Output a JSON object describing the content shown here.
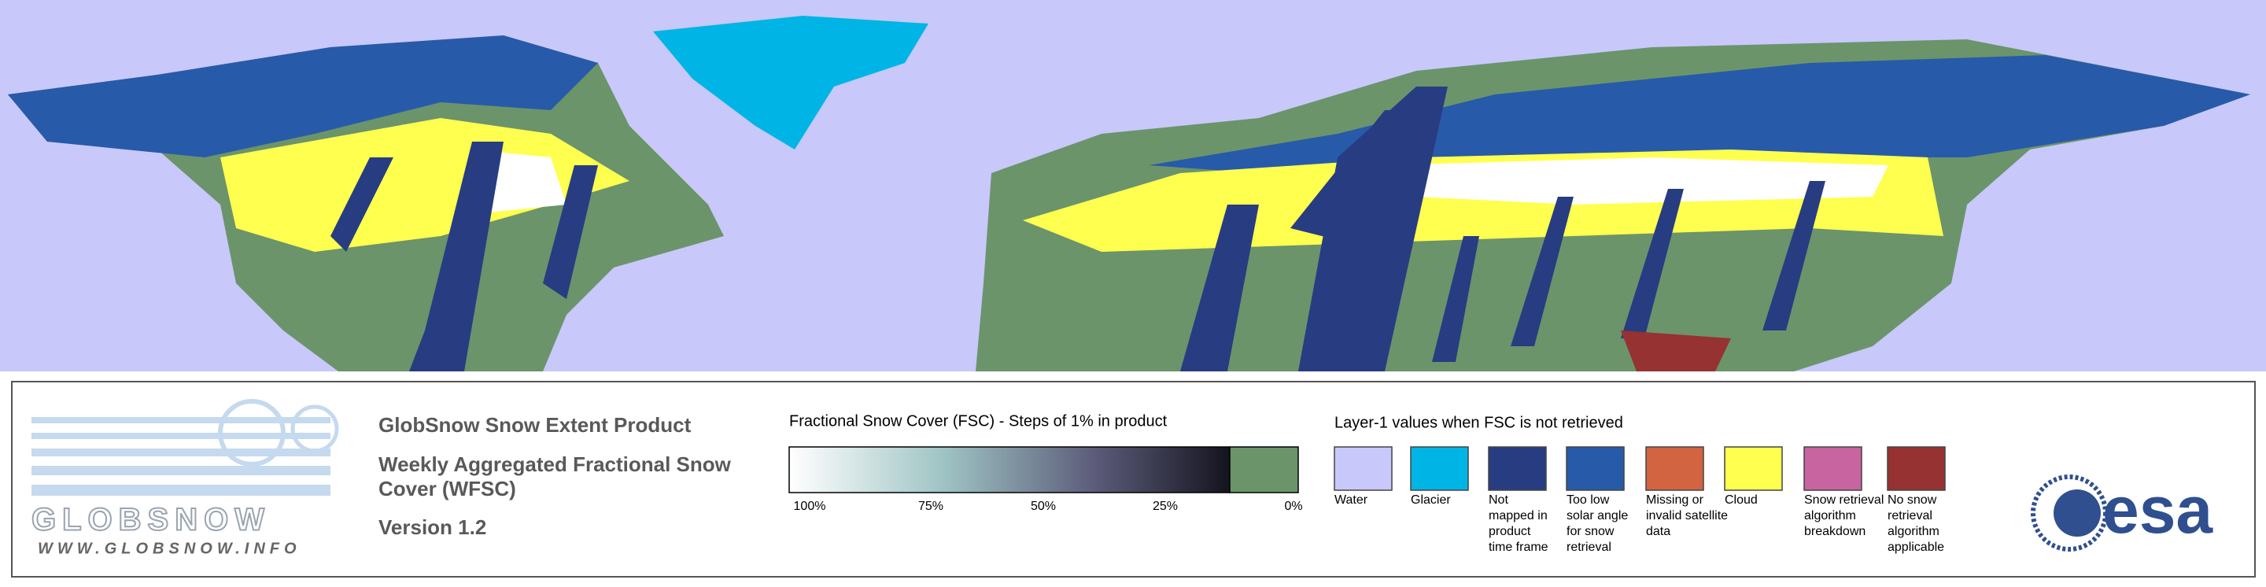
{
  "logo": {
    "name": "GLOBSNOW",
    "url": "WWW.GLOBSNOW.INFO",
    "partner": "esa"
  },
  "product": {
    "title": "GlobSnow Snow Extent Product",
    "subtitle_lines": [
      "Weekly Aggregated Fractional Snow",
      "Cover (WFSC)"
    ],
    "version": "Version 1.2"
  },
  "colorbar": {
    "title": "Fractional Snow Cover (FSC) - Steps of 1% in product",
    "tick_labels": [
      "100%",
      "75%",
      "50%",
      "25%",
      "0%"
    ],
    "low_color": "#6b946b"
  },
  "layer1": {
    "title": "Layer-1 values when FSC is not retrieved",
    "items": [
      {
        "color": "#c8c8fa",
        "lines": [
          "Water"
        ]
      },
      {
        "color": "#00b4e6",
        "lines": [
          "Glacier"
        ]
      },
      {
        "color": "#283c82",
        "lines": [
          "Not",
          "mapped in",
          "product",
          "time frame"
        ]
      },
      {
        "color": "#285aaa",
        "lines": [
          "Too low",
          "solar angle",
          "for snow",
          "retrieval"
        ]
      },
      {
        "color": "#d26441",
        "lines": [
          "Missing or",
          "invalid satellite",
          "data"
        ]
      },
      {
        "color": "#ffff50",
        "lines": [
          "Cloud"
        ]
      },
      {
        "color": "#c864a0",
        "lines": [
          "Snow retrieval",
          "algorithm",
          "breakdown"
        ]
      },
      {
        "color": "#963232",
        "lines": [
          "No snow",
          "retrieval",
          "algorithm",
          "applicable"
        ]
      }
    ]
  }
}
